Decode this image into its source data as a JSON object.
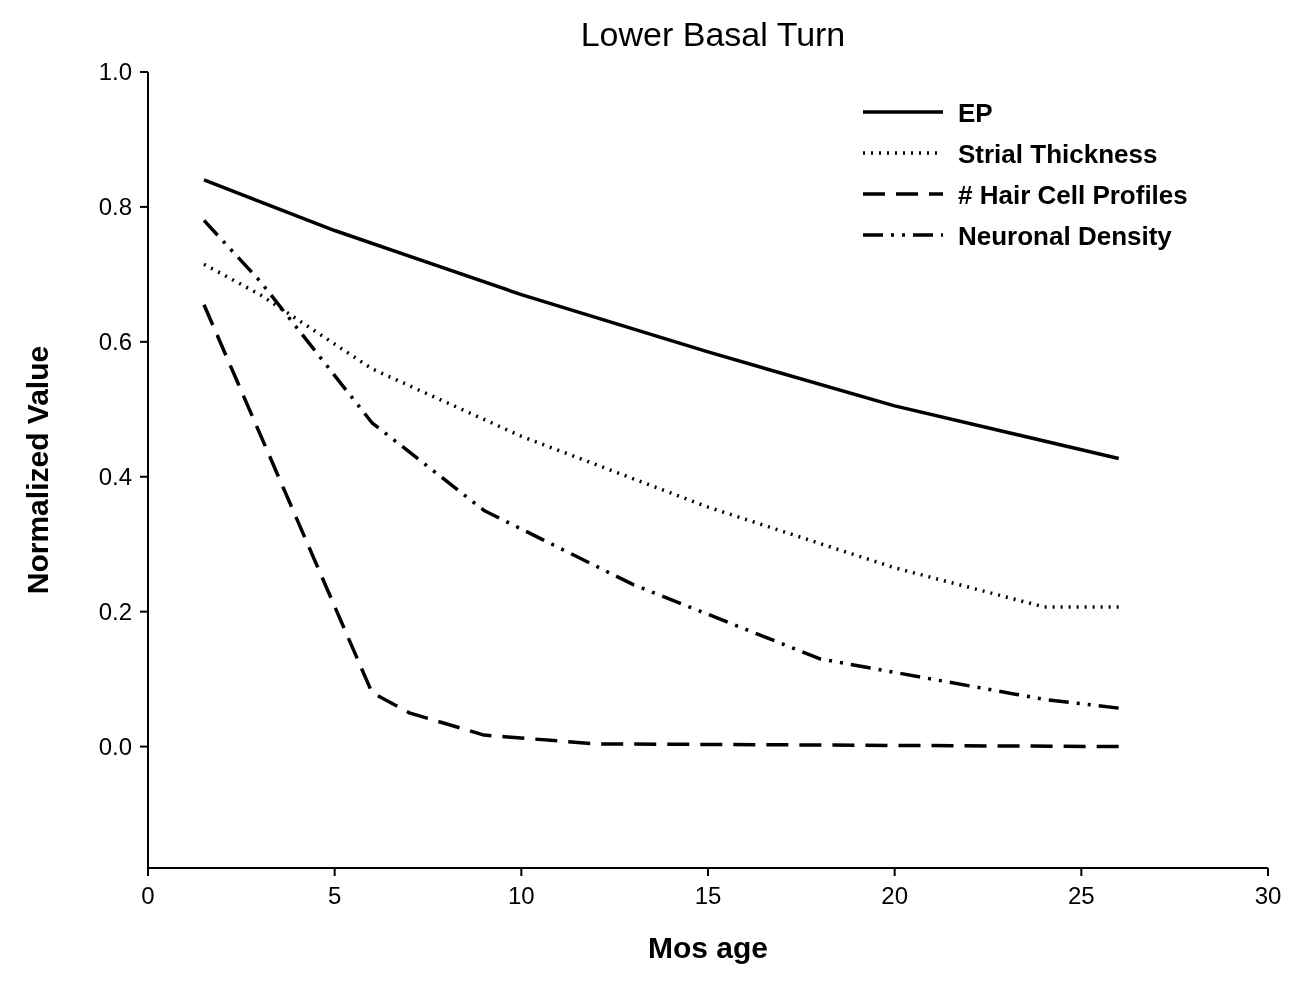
{
  "chart_data": {
    "type": "line",
    "title": "Lower Basal Turn",
    "xlabel": "Mos age",
    "ylabel": "Normalized Value",
    "xlim": [
      0,
      30
    ],
    "xticks": [
      0,
      5,
      10,
      15,
      20,
      25,
      30
    ],
    "ylim": [
      -0.18,
      1.0
    ],
    "yticks": [
      {
        "value": 0,
        "label": "0.0"
      },
      0.2,
      0.4,
      0.6,
      0.8,
      {
        "value": 1,
        "label": "1.0"
      }
    ],
    "legend": "top right",
    "grid": false,
    "marker": "none",
    "series": [
      {
        "name": "EP",
        "color": "#000000",
        "line_style": "solid",
        "x": [
          1.5,
          5,
          10,
          15,
          20,
          26
        ],
        "values": [
          0.84,
          0.765,
          0.67,
          0.585,
          0.505,
          0.427
        ]
      },
      {
        "name": "Strial Thickness",
        "color": "#000000",
        "line_style": "dotted",
        "x": [
          1.5,
          3,
          6,
          10,
          15,
          20,
          24,
          26
        ],
        "values": [
          0.715,
          0.67,
          0.56,
          0.46,
          0.355,
          0.265,
          0.207,
          0.207
        ]
      },
      {
        "name": "# Hair Cell Profiles",
        "color": "#000000",
        "line_style": "dashed",
        "x": [
          1.5,
          6,
          7,
          9,
          12,
          26
        ],
        "values": [
          0.655,
          0.08,
          0.05,
          0.017,
          0.004,
          0
        ]
      },
      {
        "name": "Neuronal Density",
        "color": "#000000",
        "line_style": "dashdot",
        "x": [
          1.5,
          3,
          6,
          9,
          13,
          18,
          22,
          24,
          26
        ],
        "values": [
          0.78,
          0.69,
          0.48,
          0.35,
          0.24,
          0.13,
          0.09,
          0.07,
          0.057
        ]
      }
    ]
  }
}
